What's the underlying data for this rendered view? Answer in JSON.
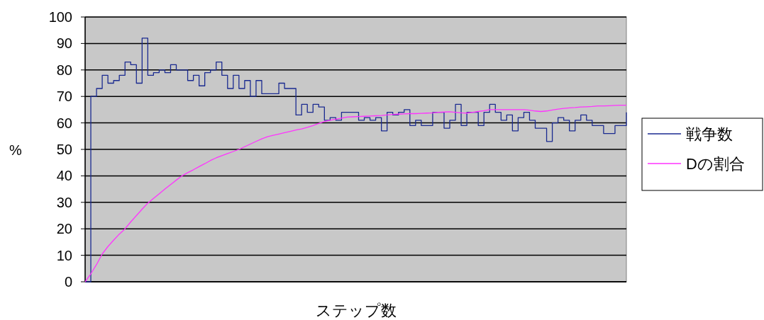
{
  "chart_data": {
    "type": "line",
    "xlabel": "ステップ数",
    "ylabel": "%",
    "ylim": [
      0,
      100
    ],
    "yticks": [
      0,
      10,
      20,
      30,
      40,
      50,
      60,
      70,
      80,
      90,
      100
    ],
    "grid": "y",
    "legend": "right",
    "categories": [
      null,
      null,
      null,
      null,
      null,
      null,
      null,
      null,
      null,
      null,
      null,
      null,
      null,
      null,
      null,
      null,
      null,
      null,
      null,
      null,
      null,
      null,
      null,
      null,
      null,
      null,
      null,
      null,
      null,
      null,
      null,
      null,
      null,
      null,
      null,
      null,
      null,
      null,
      null,
      null,
      null,
      null,
      null,
      null,
      null,
      null,
      null,
      null,
      null,
      null,
      null,
      null,
      null,
      null,
      null,
      null,
      null,
      null,
      null,
      null,
      null,
      null,
      null,
      null,
      null,
      null,
      null,
      null,
      null,
      null,
      null,
      null,
      null,
      null,
      null,
      null,
      null,
      null,
      null,
      null,
      null,
      null,
      null,
      null,
      null,
      null,
      null,
      null,
      null,
      null,
      null,
      null,
      null,
      null,
      null,
      null
    ],
    "series": [
      {
        "name": "戦争数",
        "type": "step",
        "color": "#1a2a90",
        "values": [
          0,
          70,
          73,
          78,
          75,
          76,
          78,
          83,
          82,
          75,
          92,
          78,
          79,
          80,
          79,
          82,
          80,
          80,
          76,
          78,
          74,
          79,
          80,
          83,
          78,
          73,
          78,
          73,
          76,
          70,
          76,
          71,
          71,
          71,
          75,
          73,
          73,
          63,
          67,
          64,
          67,
          66,
          61,
          62,
          61,
          64,
          64,
          64,
          61,
          62,
          61,
          62,
          57,
          64,
          63,
          64,
          65,
          59,
          61,
          59,
          59,
          64,
          64,
          58,
          61,
          67,
          59,
          64,
          64,
          59,
          64,
          67,
          64,
          61,
          63,
          57,
          62,
          64,
          61,
          58,
          58,
          53,
          60,
          62,
          61,
          57,
          61,
          63,
          61,
          59,
          59,
          56,
          56,
          59,
          59,
          64
        ]
      },
      {
        "name": "Dの割合",
        "color": "#ff33ff",
        "values": [
          0,
          3,
          6.5,
          10.5,
          13.3,
          15.7,
          18,
          20,
          22.6,
          25,
          27.4,
          29.7,
          31.5,
          33.2,
          35,
          36.7,
          38.4,
          40,
          41.2,
          42.3,
          43.5,
          44.6,
          45.8,
          46.8,
          47.6,
          48.4,
          49.2,
          50,
          51,
          52,
          53,
          54,
          54.8,
          55.3,
          55.8,
          56.3,
          56.8,
          57.3,
          57.7,
          58.3,
          59,
          59.8,
          60.5,
          61,
          61.4,
          61.8,
          62.2,
          62.3,
          62.4,
          62.5,
          62.6,
          62.7,
          62.8,
          63,
          63.2,
          63.3,
          63.4,
          63.5,
          63.5,
          63.6,
          63.7,
          63.8,
          64,
          64.1,
          64.2,
          64,
          63.8,
          63.7,
          64,
          64.3,
          64.6,
          65,
          65,
          65,
          65,
          65,
          65,
          65,
          64.8,
          64.5,
          64.3,
          64.5,
          64.9,
          65.2,
          65.5,
          65.7,
          65.8,
          66,
          66.1,
          66.2,
          66.4,
          66.4,
          66.5,
          66.6,
          66.7,
          66.7
        ]
      }
    ]
  }
}
